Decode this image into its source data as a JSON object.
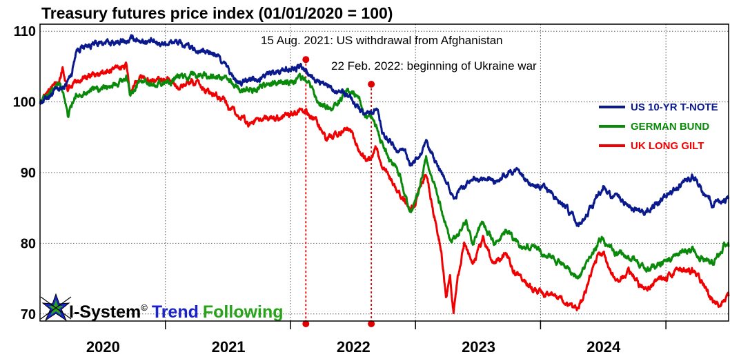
{
  "chart_data": {
    "type": "line",
    "title": "Treasury futures price index (01/01/2020 = 100)",
    "x_range": [
      "2019-07-01",
      "2024-12-31"
    ],
    "ylim": [
      69,
      111
    ],
    "yticks": [
      70,
      80,
      90,
      100,
      110
    ],
    "x_labels": [
      {
        "label": "2020",
        "date": "2020-01-01"
      },
      {
        "label": "2021",
        "date": "2021-01-01"
      },
      {
        "label": "2022",
        "date": "2022-01-01"
      },
      {
        "label": "2023",
        "date": "2023-01-01"
      },
      {
        "label": "2024",
        "date": "2024-01-01"
      }
    ],
    "year_separators": [
      "2020-07-01",
      "2021-07-01",
      "2022-07-01",
      "2023-07-01",
      "2024-07-01"
    ],
    "grid": true,
    "legend_position": "right",
    "series": [
      {
        "name": "US 10-YR T-NOTE",
        "color": "#0a1a8c",
        "points": [
          [
            "2019-07-01",
            100.0
          ],
          [
            "2019-08-15",
            101.5
          ],
          [
            "2019-09-10",
            102.0
          ],
          [
            "2019-10-01",
            104.0
          ],
          [
            "2019-10-15",
            107.5
          ],
          [
            "2019-11-15",
            108.0
          ],
          [
            "2020-01-01",
            108.3
          ],
          [
            "2020-03-09",
            108.5
          ],
          [
            "2020-04-01",
            109.0
          ],
          [
            "2020-06-01",
            108.3
          ],
          [
            "2020-08-01",
            108.5
          ],
          [
            "2020-09-15",
            107.5
          ],
          [
            "2020-11-01",
            107.0
          ],
          [
            "2020-12-01",
            106.5
          ],
          [
            "2021-01-01",
            104.5
          ],
          [
            "2021-01-20",
            103.0
          ],
          [
            "2021-02-10",
            102.5
          ],
          [
            "2021-03-10",
            103.5
          ],
          [
            "2021-04-01",
            103.5
          ],
          [
            "2021-05-01",
            104.0
          ],
          [
            "2021-06-01",
            104.5
          ],
          [
            "2021-08-01",
            104.8
          ],
          [
            "2021-09-01",
            103.5
          ],
          [
            "2021-10-01",
            102.5
          ],
          [
            "2021-11-01",
            102.0
          ],
          [
            "2021-12-01",
            101.5
          ],
          [
            "2022-01-01",
            100.0
          ],
          [
            "2022-02-01",
            98.5
          ],
          [
            "2022-02-22",
            98.5
          ],
          [
            "2022-03-10",
            99.5
          ],
          [
            "2022-03-25",
            96.0
          ],
          [
            "2022-04-15",
            94.5
          ],
          [
            "2022-05-10",
            93.0
          ],
          [
            "2022-06-01",
            93.5
          ],
          [
            "2022-06-15",
            91.0
          ],
          [
            "2022-07-10",
            92.0
          ],
          [
            "2022-08-01",
            94.0
          ],
          [
            "2022-09-01",
            91.0
          ],
          [
            "2022-09-28",
            89.0
          ],
          [
            "2022-10-20",
            86.5
          ],
          [
            "2022-11-15",
            88.0
          ],
          [
            "2022-12-15",
            89.0
          ],
          [
            "2023-01-15",
            89.5
          ],
          [
            "2023-02-15",
            88.5
          ],
          [
            "2023-03-20",
            89.5
          ],
          [
            "2023-04-15",
            90.5
          ],
          [
            "2023-05-15",
            89.0
          ],
          [
            "2023-06-15",
            88.0
          ],
          [
            "2023-07-15",
            87.5
          ],
          [
            "2023-08-15",
            86.5
          ],
          [
            "2023-09-15",
            85.0
          ],
          [
            "2023-10-20",
            82.5
          ],
          [
            "2023-11-15",
            84.5
          ],
          [
            "2023-12-15",
            86.5
          ],
          [
            "2024-01-01",
            88.0
          ],
          [
            "2024-01-20",
            87.0
          ],
          [
            "2024-02-15",
            86.0
          ],
          [
            "2024-04-01",
            85.0
          ],
          [
            "2024-04-25",
            84.0
          ],
          [
            "2024-05-20",
            85.0
          ],
          [
            "2024-06-15",
            86.0
          ],
          [
            "2024-07-15",
            87.0
          ],
          [
            "2024-08-15",
            88.5
          ],
          [
            "2024-09-15",
            89.5
          ],
          [
            "2024-10-15",
            87.5
          ],
          [
            "2024-11-15",
            85.5
          ],
          [
            "2024-12-31",
            86.3
          ]
        ]
      },
      {
        "name": "GERMAN BUND",
        "color": "#0a8a0a",
        "points": [
          [
            "2019-07-01",
            100.0
          ],
          [
            "2019-08-01",
            101.5
          ],
          [
            "2019-08-28",
            102.5
          ],
          [
            "2019-09-10",
            101.0
          ],
          [
            "2019-09-20",
            98.0
          ],
          [
            "2019-10-15",
            101.0
          ],
          [
            "2019-11-15",
            101.5
          ],
          [
            "2020-01-01",
            101.8
          ],
          [
            "2020-03-09",
            103.5
          ],
          [
            "2020-03-20",
            101.0
          ],
          [
            "2020-04-15",
            103.0
          ],
          [
            "2020-06-01",
            102.5
          ],
          [
            "2020-07-15",
            103.0
          ],
          [
            "2020-08-15",
            103.5
          ],
          [
            "2020-10-01",
            104.0
          ],
          [
            "2020-12-01",
            103.5
          ],
          [
            "2021-01-01",
            103.0
          ],
          [
            "2021-02-15",
            101.5
          ],
          [
            "2021-04-01",
            102.0
          ],
          [
            "2021-05-01",
            102.5
          ],
          [
            "2021-07-15",
            103.0
          ],
          [
            "2021-08-01",
            103.5
          ],
          [
            "2021-08-15",
            103.0
          ],
          [
            "2021-09-15",
            100.5
          ],
          [
            "2021-10-20",
            99.0
          ],
          [
            "2021-11-20",
            100.0
          ],
          [
            "2021-12-15",
            101.5
          ],
          [
            "2022-01-15",
            101.0
          ],
          [
            "2022-02-01",
            98.0
          ],
          [
            "2022-02-22",
            98.0
          ],
          [
            "2022-03-10",
            96.5
          ],
          [
            "2022-03-25",
            94.0
          ],
          [
            "2022-04-20",
            91.5
          ],
          [
            "2022-05-15",
            90.0
          ],
          [
            "2022-06-15",
            84.0
          ],
          [
            "2022-07-10",
            87.0
          ],
          [
            "2022-08-01",
            92.0
          ],
          [
            "2022-08-25",
            88.0
          ],
          [
            "2022-09-20",
            84.0
          ],
          [
            "2022-10-10",
            80.0
          ],
          [
            "2022-11-01",
            81.0
          ],
          [
            "2022-11-25",
            83.0
          ],
          [
            "2022-12-15",
            80.0
          ],
          [
            "2023-01-15",
            82.5
          ],
          [
            "2023-02-15",
            80.0
          ],
          [
            "2023-03-20",
            81.5
          ],
          [
            "2023-04-15",
            80.5
          ],
          [
            "2023-05-15",
            79.5
          ],
          [
            "2023-06-15",
            79.5
          ],
          [
            "2023-07-15",
            78.5
          ],
          [
            "2023-08-15",
            77.5
          ],
          [
            "2023-09-15",
            76.5
          ],
          [
            "2023-10-15",
            75.0
          ],
          [
            "2023-11-15",
            77.0
          ],
          [
            "2023-12-15",
            80.0
          ],
          [
            "2024-01-01",
            80.5
          ],
          [
            "2024-01-20",
            79.5
          ],
          [
            "2024-02-15",
            78.5
          ],
          [
            "2024-03-15",
            78.0
          ],
          [
            "2024-04-15",
            77.0
          ],
          [
            "2024-05-15",
            76.5
          ],
          [
            "2024-06-15",
            77.0
          ],
          [
            "2024-07-15",
            77.5
          ],
          [
            "2024-08-15",
            78.5
          ],
          [
            "2024-09-15",
            79.0
          ],
          [
            "2024-10-15",
            78.0
          ],
          [
            "2024-11-15",
            77.0
          ],
          [
            "2024-12-15",
            79.5
          ],
          [
            "2024-12-31",
            79.5
          ]
        ]
      },
      {
        "name": "UK LONG GILT",
        "color": "#f00000",
        "points": [
          [
            "2019-07-01",
            100.0
          ],
          [
            "2019-08-01",
            102.0
          ],
          [
            "2019-08-25",
            103.0
          ],
          [
            "2019-09-05",
            105.0
          ],
          [
            "2019-09-20",
            101.5
          ],
          [
            "2019-10-15",
            103.0
          ],
          [
            "2019-11-15",
            103.5
          ],
          [
            "2020-01-01",
            104.0
          ],
          [
            "2020-02-15",
            105.0
          ],
          [
            "2020-03-09",
            105.0
          ],
          [
            "2020-03-20",
            101.0
          ],
          [
            "2020-04-15",
            103.5
          ],
          [
            "2020-06-01",
            103.0
          ],
          [
            "2020-07-15",
            103.0
          ],
          [
            "2020-08-15",
            102.0
          ],
          [
            "2020-09-15",
            103.0
          ],
          [
            "2020-10-15",
            102.0
          ],
          [
            "2020-11-15",
            101.0
          ],
          [
            "2020-12-15",
            100.5
          ],
          [
            "2021-01-01",
            99.0
          ],
          [
            "2021-02-01",
            98.0
          ],
          [
            "2021-03-01",
            97.0
          ],
          [
            "2021-04-01",
            97.5
          ],
          [
            "2021-06-01",
            98.0
          ],
          [
            "2021-07-15",
            98.5
          ],
          [
            "2021-08-15",
            99.0
          ],
          [
            "2021-09-15",
            97.0
          ],
          [
            "2021-10-15",
            94.5
          ],
          [
            "2021-11-15",
            95.5
          ],
          [
            "2021-12-15",
            96.5
          ],
          [
            "2022-01-01",
            95.0
          ],
          [
            "2022-01-20",
            93.0
          ],
          [
            "2022-02-10",
            91.5
          ],
          [
            "2022-02-22",
            92.0
          ],
          [
            "2022-03-10",
            93.5
          ],
          [
            "2022-03-25",
            91.0
          ],
          [
            "2022-04-20",
            89.5
          ],
          [
            "2022-05-15",
            87.0
          ],
          [
            "2022-06-15",
            84.5
          ],
          [
            "2022-07-10",
            87.0
          ],
          [
            "2022-08-01",
            89.5
          ],
          [
            "2022-08-25",
            84.0
          ],
          [
            "2022-09-15",
            79.0
          ],
          [
            "2022-09-28",
            72.0
          ],
          [
            "2022-10-10",
            76.0
          ],
          [
            "2022-10-20",
            70.5
          ],
          [
            "2022-11-01",
            75.0
          ],
          [
            "2022-11-20",
            80.0
          ],
          [
            "2022-12-15",
            77.0
          ],
          [
            "2023-01-15",
            80.5
          ],
          [
            "2023-02-15",
            77.0
          ],
          [
            "2023-03-20",
            79.0
          ],
          [
            "2023-04-15",
            76.0
          ],
          [
            "2023-05-15",
            74.5
          ],
          [
            "2023-06-15",
            73.5
          ],
          [
            "2023-07-15",
            72.5
          ],
          [
            "2023-08-15",
            73.0
          ],
          [
            "2023-09-15",
            71.0
          ],
          [
            "2023-10-15",
            70.5
          ],
          [
            "2023-11-15",
            74.0
          ],
          [
            "2023-12-15",
            78.0
          ],
          [
            "2024-01-01",
            78.5
          ],
          [
            "2024-01-20",
            76.0
          ],
          [
            "2024-02-15",
            75.0
          ],
          [
            "2024-03-15",
            76.0
          ],
          [
            "2024-04-15",
            74.0
          ],
          [
            "2024-05-15",
            74.0
          ],
          [
            "2024-06-15",
            75.0
          ],
          [
            "2024-07-15",
            75.5
          ],
          [
            "2024-08-15",
            76.5
          ],
          [
            "2024-09-15",
            76.0
          ],
          [
            "2024-10-15",
            74.5
          ],
          [
            "2024-11-15",
            72.0
          ],
          [
            "2024-12-05",
            71.0
          ],
          [
            "2024-12-31",
            72.5
          ]
        ]
      }
    ],
    "annotations": [
      {
        "date": "2021-08-15",
        "value": 106.0,
        "label": "15 Aug. 2021: US withdrawal from Afghanistan"
      },
      {
        "date": "2022-02-22",
        "value": 102.5,
        "label": "22 Feb. 2022: beginning of Ukraine war"
      }
    ]
  },
  "branding": {
    "mark": "I-System",
    "copyright": "©",
    "word1": "Trend",
    "word2": "Following",
    "colors": {
      "mark": "#000000",
      "word1": "#1a23c8",
      "word2": "#27a31a"
    }
  }
}
